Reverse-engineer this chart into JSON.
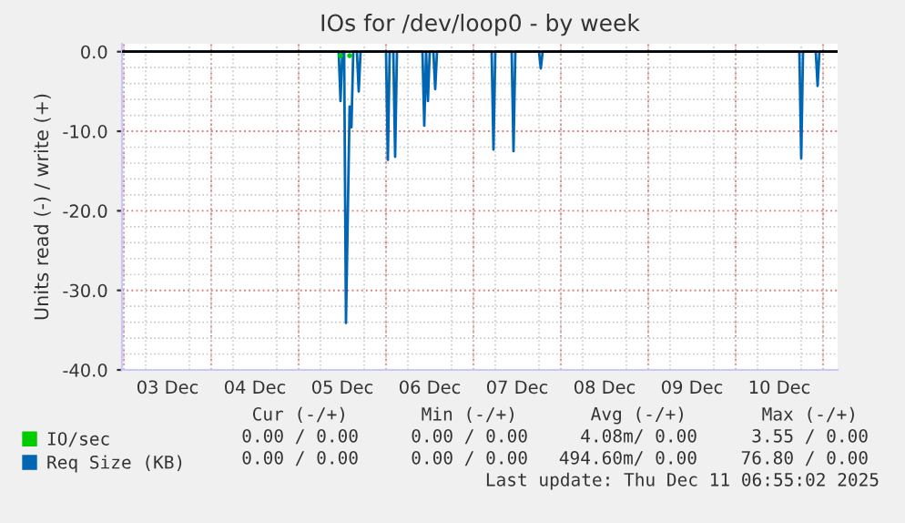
{
  "chart_data": {
    "type": "line",
    "title": "IOs for /dev/loop0 - by week",
    "ylabel": "Units read (-) / write (+)",
    "x": [
      "2025-12-03T00:00",
      "2025-12-05T11:00",
      "2025-12-05T11:30",
      "2025-12-05T12:00",
      "2025-12-05T12:30",
      "2025-12-05T13:00",
      "2025-12-05T14:00",
      "2025-12-05T14:30",
      "2025-12-05T15:00",
      "2025-12-05T16:00",
      "2025-12-05T16:30",
      "2025-12-05T17:00",
      "2025-12-06T00:00",
      "2025-12-06T00:30",
      "2025-12-06T01:00",
      "2025-12-06T02:00",
      "2025-12-06T02:30",
      "2025-12-06T03:00",
      "2025-12-06T10:00",
      "2025-12-06T10:30",
      "2025-12-06T11:00",
      "2025-12-06T11:30",
      "2025-12-06T12:00",
      "2025-12-06T13:00",
      "2025-12-06T13:30",
      "2025-12-06T14:00",
      "2025-12-07T05:00",
      "2025-12-07T05:30",
      "2025-12-07T06:00",
      "2025-12-07T10:30",
      "2025-12-07T11:00",
      "2025-12-07T11:30",
      "2025-12-07T18:00",
      "2025-12-07T18:30",
      "2025-12-07T19:00",
      "2025-12-10T17:30",
      "2025-12-10T18:00",
      "2025-12-10T18:30",
      "2025-12-10T22:00",
      "2025-12-10T22:30",
      "2025-12-10T23:00",
      "2025-12-11T04:00"
    ],
    "series": [
      {
        "name": "IO/sec",
        "type": "scatter",
        "color": "#00cc00",
        "values": [
          null,
          null,
          -0.5,
          null,
          null,
          null,
          -0.5,
          null,
          null,
          null,
          null,
          null,
          null,
          null,
          null,
          null,
          null,
          null,
          null,
          null,
          null,
          null,
          null,
          null,
          null,
          null,
          null,
          null,
          null,
          null,
          null,
          null,
          null,
          null,
          null,
          null,
          null,
          null,
          null,
          null,
          null,
          null
        ]
      },
      {
        "name": "Req Size (KB)",
        "color": "#0066b3",
        "values": [
          0,
          0,
          -6.2,
          0,
          0,
          -34.1,
          -6.9,
          -9.5,
          0,
          0,
          -5.0,
          0,
          0,
          -13.6,
          0,
          0,
          -13.2,
          0,
          0,
          -9.3,
          0,
          -6.2,
          0,
          0,
          -4.7,
          0,
          0,
          -12.3,
          0,
          0,
          -12.5,
          0,
          0,
          -2.1,
          0,
          0,
          -13.4,
          0,
          0,
          -4.3,
          0,
          0
        ]
      }
    ],
    "xlim": [
      "2025-12-02T23:30",
      "2025-12-11T04:00"
    ],
    "xticks": [
      {
        "value": "2025-12-03T00:00",
        "label": null
      },
      {
        "value": "2025-12-03T12:00",
        "label": "03 Dec"
      },
      {
        "value": "2025-12-04T00:00",
        "label": null
      },
      {
        "value": "2025-12-04T12:00",
        "label": "04 Dec"
      },
      {
        "value": "2025-12-05T00:00",
        "label": null
      },
      {
        "value": "2025-12-05T12:00",
        "label": "05 Dec"
      },
      {
        "value": "2025-12-06T00:00",
        "label": null
      },
      {
        "value": "2025-12-06T12:00",
        "label": "06 Dec"
      },
      {
        "value": "2025-12-07T00:00",
        "label": null
      },
      {
        "value": "2025-12-07T12:00",
        "label": "07 Dec"
      },
      {
        "value": "2025-12-08T00:00",
        "label": null
      },
      {
        "value": "2025-12-08T12:00",
        "label": "08 Dec"
      },
      {
        "value": "2025-12-09T00:00",
        "label": null
      },
      {
        "value": "2025-12-09T12:00",
        "label": "09 Dec"
      },
      {
        "value": "2025-12-10T00:00",
        "label": null
      },
      {
        "value": "2025-12-10T12:00",
        "label": "10 Dec"
      },
      {
        "value": "2025-12-11T00:00",
        "label": null
      }
    ],
    "ylim": [
      -40,
      1
    ],
    "yticks": [
      {
        "value": -40,
        "label": "-40.0"
      },
      {
        "value": -30,
        "label": "-30.0"
      },
      {
        "value": -20,
        "label": "-20.0"
      },
      {
        "value": -10,
        "label": "-10.0"
      },
      {
        "value": 0,
        "label": "0.0"
      }
    ],
    "ref_lines": [
      {
        "axis": "y",
        "value": 0,
        "color": "#000000"
      }
    ],
    "grid": true,
    "legend": "bottom",
    "annotations": [
      "Cur (-/+)",
      "Min (-/+)",
      "Avg (-/+)",
      "Max (-/+)",
      "0.00 / 0.00",
      "0.00 / 0.00",
      "4.08m/ 0.00",
      "3.55 / 0.00",
      "0.00 / 0.00",
      "0.00 / 0.00",
      "494.60m/ 0.00",
      "76.80 / 0.00",
      "Last update: Thu Dec 11 06:55:02 2025"
    ]
  }
}
